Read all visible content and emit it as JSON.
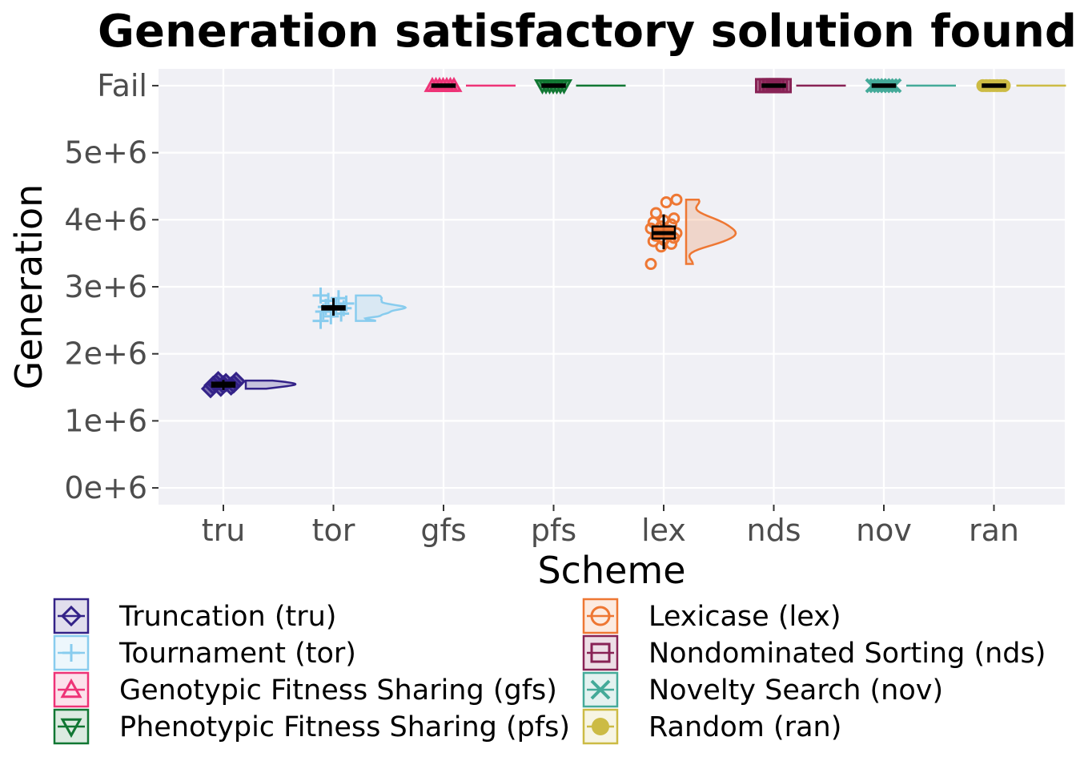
{
  "chart_data": {
    "type": "raincloud",
    "title": "Generation satisfactory solution found",
    "xlabel": "Scheme",
    "ylabel": "Generation",
    "y_ticks": [
      "0e+6",
      "1e+6",
      "2e+6",
      "3e+6",
      "4e+6",
      "5e+6",
      "Fail"
    ],
    "y_tick_values": [
      0,
      1000000,
      2000000,
      3000000,
      4000000,
      5000000,
      6000000
    ],
    "ylim": [
      -250000,
      6250000
    ],
    "fail_value": 6000000,
    "grid": true,
    "legend_position": "bottom",
    "categories": [
      "tru",
      "tor",
      "gfs",
      "pfs",
      "lex",
      "nds",
      "nov",
      "ran"
    ],
    "series": [
      {
        "key": "tru",
        "name": "Truncation (tru)",
        "color": "#332288",
        "marker": "diamond",
        "median": 1540000,
        "q1": 1510000,
        "q3": 1570000,
        "whisker_low": 1460000,
        "whisker_high": 1610000,
        "points": [
          1480000,
          1500000,
          1520000,
          1530000,
          1540000,
          1550000,
          1560000,
          1570000,
          1590000,
          1600000
        ]
      },
      {
        "key": "tor",
        "name": "Tournament (tor)",
        "color": "#88ccee",
        "marker": "plus",
        "median": 2690000,
        "q1": 2660000,
        "q3": 2710000,
        "whisker_low": 2570000,
        "whisker_high": 2830000,
        "points": [
          2490000,
          2560000,
          2600000,
          2630000,
          2660000,
          2680000,
          2700000,
          2720000,
          2750000,
          2790000,
          2830000,
          2870000
        ]
      },
      {
        "key": "gfs",
        "name": "Genotypic Fitness Sharing (gfs)",
        "color": "#ee3377",
        "marker": "triangle-up",
        "median": 6000000,
        "q1": 6000000,
        "q3": 6000000,
        "whisker_low": 6000000,
        "whisker_high": 6000000,
        "points": []
      },
      {
        "key": "pfs",
        "name": "Phenotypic Fitness Sharing (pfs)",
        "color": "#117733",
        "marker": "triangle-down",
        "median": 6000000,
        "q1": 6000000,
        "q3": 6000000,
        "whisker_low": 6000000,
        "whisker_high": 6000000,
        "points": []
      },
      {
        "key": "lex",
        "name": "Lexicase (lex)",
        "color": "#ee7733",
        "marker": "circle",
        "median": 3800000,
        "q1": 3720000,
        "q3": 3900000,
        "whisker_low": 3560000,
        "whisker_high": 4080000,
        "points": [
          3340000,
          3600000,
          3640000,
          3680000,
          3700000,
          3730000,
          3760000,
          3780000,
          3800000,
          3820000,
          3840000,
          3870000,
          3900000,
          3930000,
          3960000,
          3990000,
          4020000,
          4100000,
          4260000,
          4300000
        ]
      },
      {
        "key": "nds",
        "name": "Nondominated Sorting (nds)",
        "color": "#882255",
        "marker": "square",
        "median": 6000000,
        "q1": 6000000,
        "q3": 6000000,
        "whisker_low": 6000000,
        "whisker_high": 6000000,
        "points": []
      },
      {
        "key": "nov",
        "name": "Novelty Search (nov)",
        "color": "#44aa99",
        "marker": "cross",
        "median": 6000000,
        "q1": 6000000,
        "q3": 6000000,
        "whisker_low": 6000000,
        "whisker_high": 6000000,
        "points": []
      },
      {
        "key": "ran",
        "name": "Random (ran)",
        "color": "#ccbb44",
        "marker": "dot",
        "median": 6000000,
        "q1": 6000000,
        "q3": 6000000,
        "whisker_low": 6000000,
        "whisker_high": 6000000,
        "points": []
      }
    ]
  }
}
